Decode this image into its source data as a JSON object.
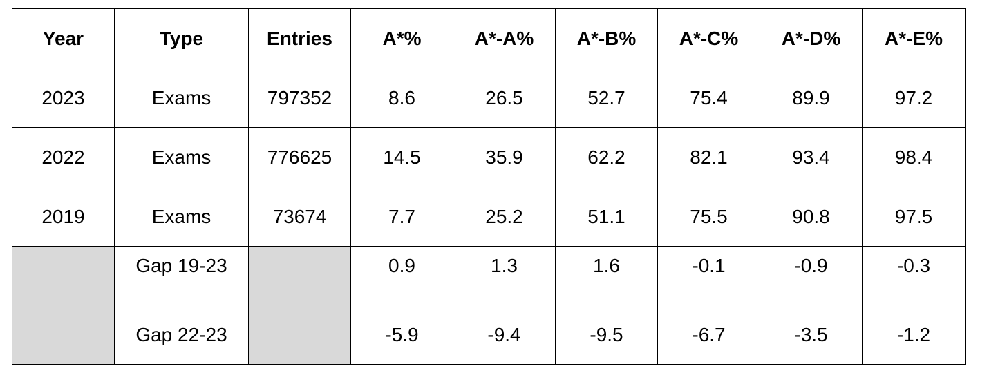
{
  "table": {
    "headers": [
      "Year",
      "Type",
      "Entries",
      "A*%",
      "A*-A%",
      "A*-B%",
      "A*-C%",
      "A*-D%",
      "A*-E%"
    ],
    "rows": [
      [
        "2023",
        "Exams",
        "797352",
        "8.6",
        "26.5",
        "52.7",
        "75.4",
        "89.9",
        "97.2"
      ],
      [
        "2022",
        "Exams",
        "776625",
        "14.5",
        "35.9",
        "62.2",
        "82.1",
        "93.4",
        "98.4"
      ],
      [
        "2019",
        "Exams",
        "73674",
        "7.7",
        "25.2",
        "51.1",
        "75.5",
        "90.8",
        "97.5"
      ],
      [
        "",
        "Gap 19-23",
        "",
        "0.9",
        "1.3",
        "1.6",
        "-0.1",
        "-0.9",
        "-0.3"
      ],
      [
        "",
        "Gap 22-23",
        "",
        "-5.9",
        "-9.4",
        "-9.5",
        "-6.7",
        "-3.5",
        "-1.2"
      ]
    ],
    "shaded_color": "#d9d9d9",
    "border_color": "#000000"
  }
}
